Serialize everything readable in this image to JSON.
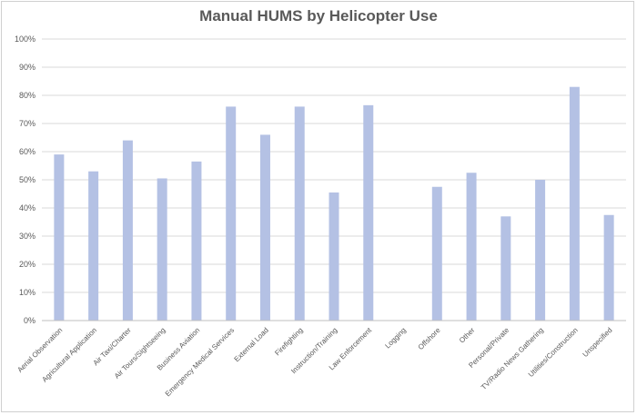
{
  "chart_data": {
    "type": "bar",
    "title": "Manual HUMS by Helicopter Use",
    "xlabel": "",
    "ylabel": "",
    "ylim": [
      0,
      100
    ],
    "yticks": [
      "0%",
      "10%",
      "20%",
      "30%",
      "40%",
      "50%",
      "60%",
      "70%",
      "80%",
      "90%",
      "100%"
    ],
    "grid": true,
    "legend": "none",
    "bar_color": "#b4c1e4",
    "categories": [
      "Aerial Observation",
      "Agricultural Application",
      "Air Taxi/Charter",
      "Air Tours/Sightseeing",
      "Business Aviation",
      "Emergency Medical Services",
      "External Load",
      "Firefighting",
      "Instruction/Training",
      "Law Enforcement",
      "Logging",
      "Offshore",
      "Other",
      "Personal/Private",
      "TV/Radio News Gathering",
      "Utilities/Construction",
      "Unspecified"
    ],
    "values": [
      59,
      53,
      64,
      50.5,
      56.5,
      76,
      66,
      76,
      45.5,
      76.5,
      0,
      47.5,
      52.5,
      37,
      50,
      83,
      37.5
    ]
  }
}
